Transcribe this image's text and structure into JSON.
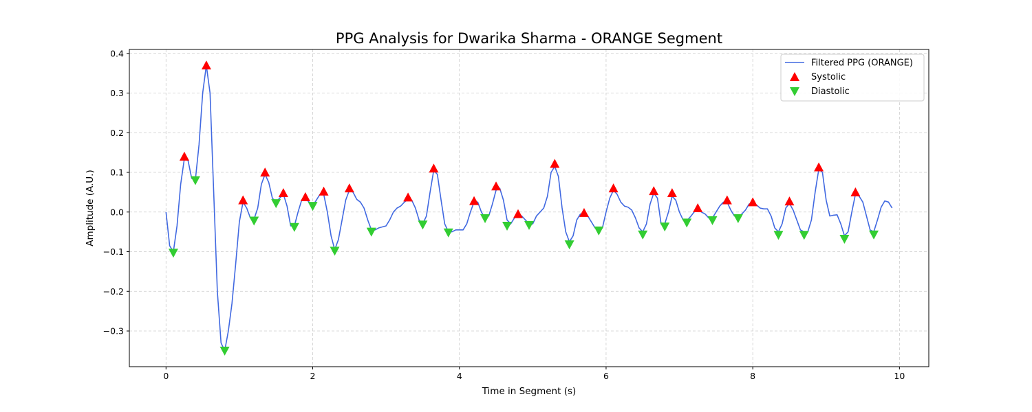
{
  "chart_data": {
    "type": "line",
    "title": "PPG Analysis for Dwarika Sharma - ORANGE Segment",
    "xlabel": "Time in Segment (s)",
    "ylabel": "Amplitude (A.U.)",
    "xlim": [
      -0.5,
      10.4
    ],
    "ylim": [
      -0.39,
      0.41
    ],
    "xticks": [
      0,
      2,
      4,
      6,
      8,
      10
    ],
    "xtick_labels": [
      "0",
      "2",
      "4",
      "6",
      "8",
      "10"
    ],
    "yticks": [
      -0.3,
      -0.2,
      -0.1,
      0.0,
      0.1,
      0.2,
      0.3,
      0.4
    ],
    "ytick_labels": [
      "−0.3",
      "−0.2",
      "−0.1",
      "0.0",
      "0.1",
      "0.2",
      "0.3",
      "0.4"
    ],
    "grid": true,
    "legend_position": "top-right",
    "colors": {
      "line": "#4169e1",
      "systolic": "#ff0000",
      "diastolic": "#32cd32"
    },
    "series": [
      {
        "name": "Filtered PPG (ORANGE)",
        "kind": "line",
        "x": [
          0,
          0.05,
          0.1,
          0.15,
          0.2,
          0.25,
          0.3,
          0.35,
          0.4,
          0.45,
          0.5,
          0.55,
          0.6,
          0.65,
          0.7,
          0.75,
          0.8,
          0.85,
          0.9,
          0.95,
          1.0,
          1.05,
          1.1,
          1.15,
          1.2,
          1.25,
          1.3,
          1.35,
          1.4,
          1.45,
          1.5,
          1.55,
          1.6,
          1.65,
          1.7,
          1.75,
          1.8,
          1.85,
          1.9,
          1.95,
          2.0,
          2.05,
          2.1,
          2.15,
          2.2,
          2.25,
          2.3,
          2.35,
          2.4,
          2.45,
          2.5,
          2.55,
          2.6,
          2.65,
          2.7,
          2.75,
          2.8,
          2.85,
          2.9,
          3.0,
          3.05,
          3.1,
          3.15,
          3.2,
          3.25,
          3.3,
          3.35,
          3.4,
          3.45,
          3.5,
          3.55,
          3.6,
          3.65,
          3.7,
          3.75,
          3.8,
          3.85,
          3.9,
          3.95,
          4.0,
          4.05,
          4.1,
          4.15,
          4.2,
          4.25,
          4.3,
          4.35,
          4.4,
          4.45,
          4.5,
          4.55,
          4.6,
          4.65,
          4.7,
          4.75,
          4.8,
          4.85,
          4.9,
          4.95,
          5.0,
          5.05,
          5.1,
          5.15,
          5.2,
          5.25,
          5.3,
          5.35,
          5.4,
          5.45,
          5.5,
          5.55,
          5.6,
          5.65,
          5.7,
          5.75,
          5.8,
          5.85,
          5.9,
          5.95,
          6.0,
          6.05,
          6.1,
          6.15,
          6.2,
          6.25,
          6.3,
          6.35,
          6.4,
          6.45,
          6.5,
          6.55,
          6.6,
          6.65,
          6.7,
          6.75,
          6.8,
          6.85,
          6.9,
          6.95,
          7.0,
          7.05,
          7.1,
          7.15,
          7.2,
          7.25,
          7.3,
          7.35,
          7.4,
          7.45,
          7.5,
          7.55,
          7.6,
          7.65,
          7.7,
          7.75,
          7.8,
          7.85,
          7.9,
          7.95,
          8.0,
          8.05,
          8.1,
          8.15,
          8.2,
          8.25,
          8.3,
          8.35,
          8.4,
          8.45,
          8.5,
          8.55,
          8.6,
          8.65,
          8.7,
          8.75,
          8.8,
          8.85,
          8.9,
          8.95,
          9.0,
          9.05,
          9.1,
          9.15,
          9.2,
          9.25,
          9.3,
          9.35,
          9.4,
          9.45,
          9.5,
          9.55,
          9.6,
          9.65,
          9.7,
          9.75,
          9.8,
          9.85,
          9.9
        ],
        "y": [
          0.0,
          -0.085,
          -0.1,
          -0.035,
          0.07,
          0.135,
          0.13,
          0.085,
          0.08,
          0.17,
          0.3,
          0.37,
          0.3,
          0.05,
          -0.2,
          -0.33,
          -0.35,
          -0.3,
          -0.23,
          -0.13,
          -0.025,
          0.025,
          0.01,
          -0.015,
          -0.018,
          0.01,
          0.07,
          0.095,
          0.075,
          0.035,
          0.025,
          0.035,
          0.045,
          0.015,
          -0.035,
          -0.035,
          0.0,
          0.03,
          0.035,
          0.025,
          0.015,
          0.03,
          0.045,
          0.045,
          0.0,
          -0.06,
          -0.095,
          -0.07,
          -0.02,
          0.03,
          0.055,
          0.05,
          0.032,
          0.025,
          0.01,
          -0.02,
          -0.045,
          -0.045,
          -0.04,
          -0.035,
          -0.02,
          0.0,
          0.01,
          0.015,
          0.025,
          0.032,
          0.03,
          0.01,
          -0.02,
          -0.03,
          -0.01,
          0.05,
          0.105,
          0.095,
          0.03,
          -0.03,
          -0.05,
          -0.05,
          -0.045,
          -0.045,
          -0.045,
          -0.03,
          0.0,
          0.025,
          0.025,
          0.0,
          -0.015,
          -0.01,
          0.02,
          0.055,
          0.06,
          0.03,
          -0.02,
          -0.03,
          -0.015,
          -0.005,
          -0.01,
          -0.02,
          -0.03,
          -0.03,
          -0.01,
          0.0,
          0.01,
          0.04,
          0.1,
          0.115,
          0.09,
          0.01,
          -0.05,
          -0.075,
          -0.06,
          -0.02,
          -0.005,
          -0.005,
          -0.01,
          -0.025,
          -0.04,
          -0.045,
          -0.04,
          0.0,
          0.035,
          0.055,
          0.045,
          0.025,
          0.015,
          0.012,
          0.005,
          -0.015,
          -0.04,
          -0.05,
          -0.03,
          0.02,
          0.048,
          0.035,
          -0.03,
          -0.03,
          0.0,
          0.04,
          0.03,
          0.0,
          -0.02,
          -0.022,
          -0.012,
          0.0,
          0.005,
          0.0,
          -0.005,
          -0.015,
          -0.015,
          0.0,
          0.015,
          0.025,
          0.025,
          0.005,
          -0.01,
          -0.012,
          -0.005,
          0.005,
          0.02,
          0.022,
          0.018,
          0.01,
          0.008,
          0.008,
          -0.01,
          -0.04,
          -0.05,
          -0.03,
          0.01,
          0.022,
          0.005,
          -0.02,
          -0.045,
          -0.05,
          -0.05,
          -0.02,
          0.05,
          0.108,
          0.1,
          0.03,
          -0.01,
          -0.008,
          -0.007,
          -0.03,
          -0.06,
          -0.05,
          0.0,
          0.045,
          0.04,
          0.025,
          -0.01,
          -0.045,
          -0.05,
          -0.02,
          0.012,
          0.028,
          0.025,
          0.01
        ]
      },
      {
        "name": "Systolic",
        "kind": "marker-up",
        "x": [
          0.25,
          0.55,
          1.05,
          1.35,
          1.6,
          1.9,
          2.15,
          2.5,
          3.3,
          3.65,
          4.2,
          4.5,
          4.8,
          5.3,
          5.7,
          6.1,
          6.65,
          6.9,
          7.25,
          7.65,
          8.0,
          8.5,
          8.9,
          9.4
        ],
        "y": [
          0.14,
          0.37,
          0.03,
          0.1,
          0.048,
          0.038,
          0.052,
          0.06,
          0.037,
          0.11,
          0.028,
          0.065,
          -0.005,
          0.122,
          -0.002,
          0.06,
          0.053,
          0.048,
          0.01,
          0.03,
          0.025,
          0.027,
          0.113,
          0.05
        ]
      },
      {
        "name": "Diastolic",
        "kind": "marker-down",
        "x": [
          0.1,
          0.4,
          0.8,
          1.2,
          1.5,
          1.75,
          2.0,
          2.3,
          2.8,
          3.5,
          3.85,
          4.35,
          4.65,
          4.95,
          5.5,
          5.9,
          6.5,
          6.8,
          7.1,
          7.45,
          7.8,
          8.35,
          8.7,
          9.25,
          9.65
        ],
        "y": [
          -0.103,
          0.08,
          -0.35,
          -0.022,
          0.022,
          -0.038,
          0.015,
          -0.098,
          -0.05,
          -0.032,
          -0.052,
          -0.016,
          -0.035,
          -0.033,
          -0.082,
          -0.047,
          -0.057,
          -0.037,
          -0.027,
          -0.021,
          -0.016,
          -0.058,
          -0.058,
          -0.068,
          -0.057
        ]
      }
    ]
  }
}
